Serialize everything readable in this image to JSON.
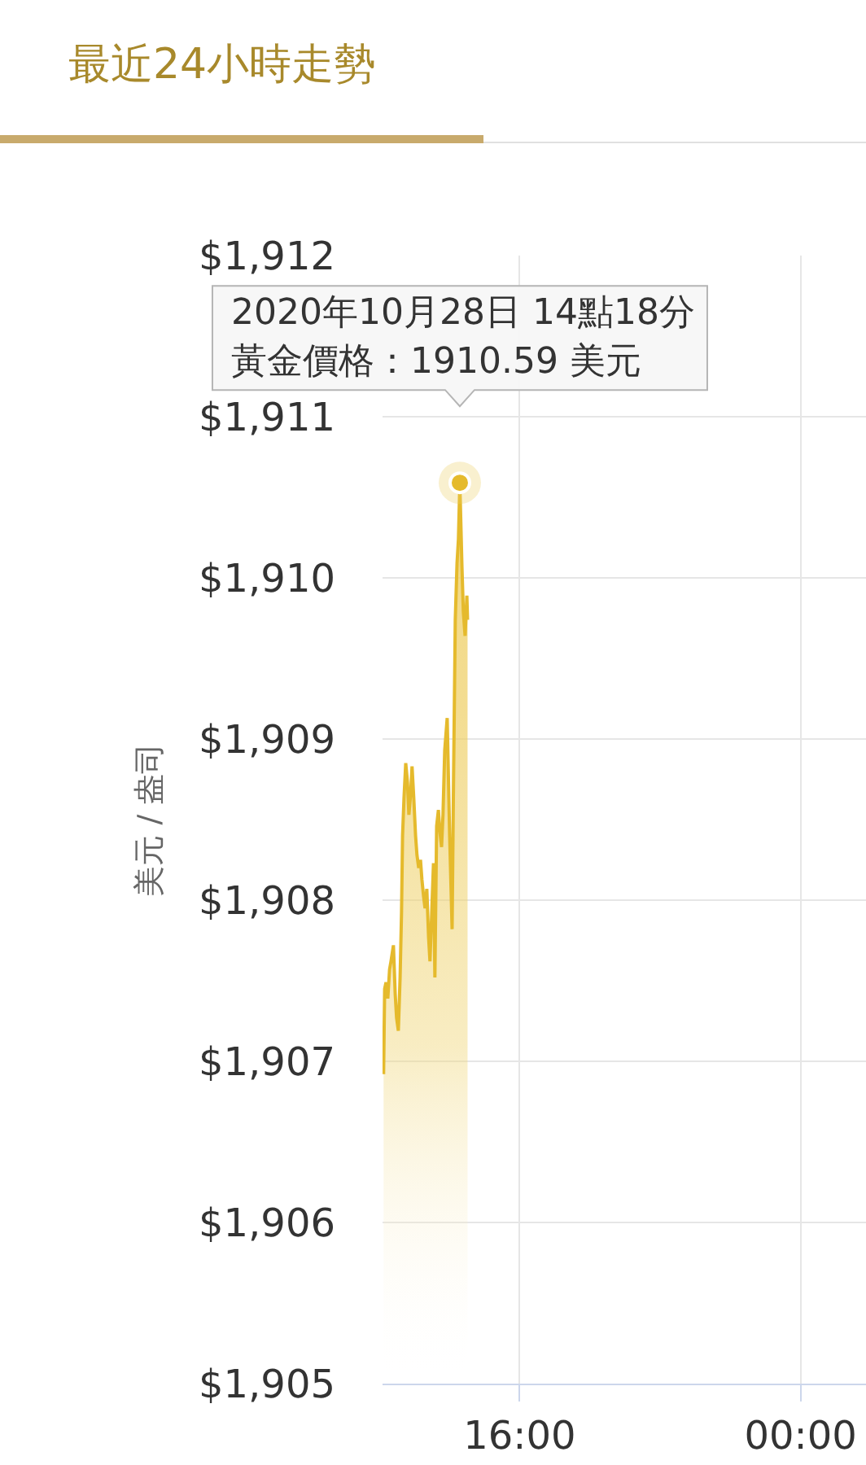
{
  "chart_data": {
    "type": "area",
    "title": "最近24小時走勢",
    "ylabel": "美元 / 盎司",
    "x": [
      12.13,
      12.16,
      12.2,
      12.25,
      12.3,
      12.34,
      12.41,
      12.46,
      12.5,
      12.55,
      12.6,
      12.64,
      12.67,
      12.71,
      12.76,
      12.81,
      12.85,
      12.9,
      12.94,
      12.99,
      13.04,
      13.08,
      13.13,
      13.18,
      13.22,
      13.27,
      13.31,
      13.36,
      13.41,
      13.45,
      13.5,
      13.55,
      13.59,
      13.64,
      13.69,
      13.73,
      13.78,
      13.82,
      13.87,
      13.94,
      14.01,
      14.08,
      14.12,
      14.17,
      14.22,
      14.26,
      14.3,
      14.36,
      14.4,
      14.45,
      14.5,
      14.52
    ],
    "values": [
      1906.92,
      1907.45,
      1907.49,
      1907.39,
      1907.57,
      1907.62,
      1907.72,
      1907.42,
      1907.27,
      1907.19,
      1907.52,
      1907.92,
      1908.4,
      1908.63,
      1908.85,
      1908.73,
      1908.53,
      1908.66,
      1908.83,
      1908.63,
      1908.4,
      1908.28,
      1908.2,
      1908.25,
      1908.13,
      1908.02,
      1907.95,
      1908.07,
      1907.77,
      1907.62,
      1907.92,
      1908.23,
      1907.52,
      1908.46,
      1908.56,
      1908.43,
      1908.33,
      1908.53,
      1908.93,
      1909.13,
      1908.4,
      1907.82,
      1908.73,
      1909.74,
      1910.09,
      1910.24,
      1910.59,
      1910.07,
      1909.79,
      1909.64,
      1909.89,
      1909.74
    ],
    "color": "#e5ba2c",
    "xlim": [
      12.1,
      25.86
    ],
    "xticks": [
      {
        "value": 16,
        "label": "16:00"
      },
      {
        "value": 24,
        "label": "00:00"
      }
    ],
    "ylim": [
      1905,
      1912
    ],
    "yticks": [
      {
        "value": 1905,
        "label": "$1,905"
      },
      {
        "value": 1906,
        "label": "$1,906"
      },
      {
        "value": 1907,
        "label": "$1,907"
      },
      {
        "value": 1908,
        "label": "$1,908"
      },
      {
        "value": 1909,
        "label": "$1,909"
      },
      {
        "value": 1910,
        "label": "$1,910"
      },
      {
        "value": 1911,
        "label": "$1,911"
      },
      {
        "value": 1912,
        "label": "$1,912"
      }
    ],
    "grid": true,
    "annotations": [
      "2020年10月28日 14點18分",
      {
        "text": "黃金價格：1910.59 美元",
        "x": 14.3,
        "y": 1910.59
      }
    ]
  }
}
